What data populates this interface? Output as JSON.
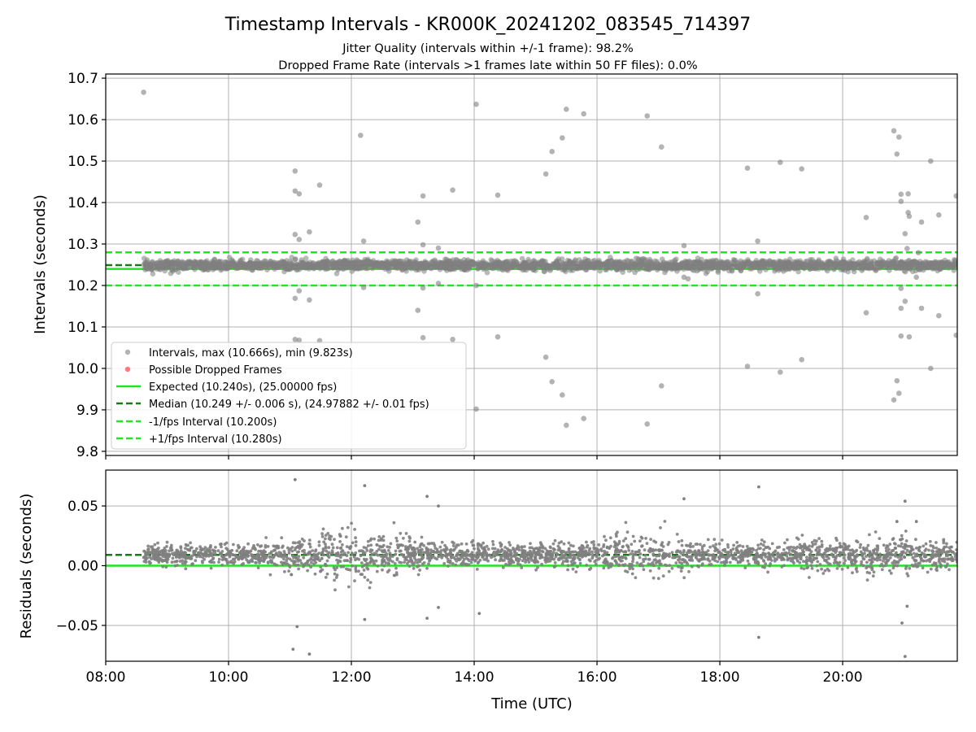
{
  "figure": {
    "title": "Timestamp Intervals - KR000K_20241202_083545_714397",
    "subtitle_1": "Jitter Quality (intervals within +/-1 frame): 98.2%",
    "subtitle_2": "Dropped Frame Rate (intervals >1 frames late within 50 FF files): 0.0%"
  },
  "colors": {
    "points": "#808080",
    "dropped": "#ff5a5a",
    "expected": "#1fe31f",
    "median": "#1a7a1a",
    "fps_band": "#22e622",
    "grid": "#b0b0b0"
  },
  "chart_data": [
    {
      "type": "scatter",
      "panel": "intervals",
      "xlabel": "",
      "ylabel": "Intervals (seconds)",
      "xlim": [
        "08:00",
        "21:52"
      ],
      "ylim": [
        9.79,
        10.71
      ],
      "yticks": [
        "9.8",
        "9.9",
        "10.0",
        "10.1",
        "10.2",
        "10.3",
        "10.4",
        "10.5",
        "10.6",
        "10.7"
      ],
      "grid": true,
      "legend_position": "lower-left",
      "legend": [
        "Intervals, max (10.666s), min (9.823s)",
        "Possible Dropped Frames",
        "Expected (10.240s), (25.00000 fps)",
        "Median (10.249 +/- 0.006 s), (24.97882 +/- 0.01 fps)",
        "-1/fps Interval (10.200s)",
        "+1/fps Interval (10.280s)"
      ],
      "reference_lines": {
        "expected": 10.24,
        "median": 10.249,
        "minus_1_fps": 10.2,
        "plus_1_fps": 10.28
      },
      "series": [
        {
          "name": "Intervals, max (10.666s), min (9.823s)",
          "band": {
            "x_range": [
              "08:37",
              "21:52"
            ],
            "center": 10.249,
            "std": 0.006
          },
          "outliers": [
            {
              "x": "08:37",
              "y": 10.666
            },
            {
              "x": "11:05",
              "y": 10.476
            },
            {
              "x": "11:05",
              "y": 10.428
            },
            {
              "x": "11:09",
              "y": 10.421
            },
            {
              "x": "11:05",
              "y": 10.323
            },
            {
              "x": "11:09",
              "y": 10.311
            },
            {
              "x": "11:05",
              "y": 10.169
            },
            {
              "x": "11:09",
              "y": 10.187
            },
            {
              "x": "11:05",
              "y": 10.07
            },
            {
              "x": "11:09",
              "y": 10.068
            },
            {
              "x": "11:19",
              "y": 10.329
            },
            {
              "x": "11:19",
              "y": 10.165
            },
            {
              "x": "11:29",
              "y": 10.442
            },
            {
              "x": "11:29",
              "y": 10.067
            },
            {
              "x": "12:09",
              "y": 10.562
            },
            {
              "x": "12:12",
              "y": 10.307
            },
            {
              "x": "12:12",
              "y": 10.195
            },
            {
              "x": "13:05",
              "y": 10.353
            },
            {
              "x": "13:05",
              "y": 10.14
            },
            {
              "x": "13:10",
              "y": 10.416
            },
            {
              "x": "13:10",
              "y": 10.298
            },
            {
              "x": "13:10",
              "y": 10.194
            },
            {
              "x": "13:10",
              "y": 10.074
            },
            {
              "x": "13:25",
              "y": 10.29
            },
            {
              "x": "13:25",
              "y": 10.205
            },
            {
              "x": "13:39",
              "y": 10.43
            },
            {
              "x": "13:39",
              "y": 10.07
            },
            {
              "x": "14:02",
              "y": 10.637
            },
            {
              "x": "14:02",
              "y": 10.2
            },
            {
              "x": "14:02",
              "y": 9.902
            },
            {
              "x": "14:23",
              "y": 10.418
            },
            {
              "x": "14:23",
              "y": 10.076
            },
            {
              "x": "15:10",
              "y": 10.469
            },
            {
              "x": "15:10",
              "y": 10.027
            },
            {
              "x": "15:16",
              "y": 10.523
            },
            {
              "x": "15:16",
              "y": 9.968
            },
            {
              "x": "15:26",
              "y": 10.556
            },
            {
              "x": "15:26",
              "y": 9.936
            },
            {
              "x": "15:30",
              "y": 10.625
            },
            {
              "x": "15:30",
              "y": 9.863
            },
            {
              "x": "15:47",
              "y": 10.614
            },
            {
              "x": "15:47",
              "y": 9.879
            },
            {
              "x": "16:49",
              "y": 10.609
            },
            {
              "x": "16:49",
              "y": 9.866
            },
            {
              "x": "17:03",
              "y": 10.534
            },
            {
              "x": "17:03",
              "y": 9.958
            },
            {
              "x": "17:25",
              "y": 10.296
            },
            {
              "x": "17:25",
              "y": 10.22
            },
            {
              "x": "17:29",
              "y": 10.216
            },
            {
              "x": "18:27",
              "y": 10.483
            },
            {
              "x": "18:27",
              "y": 10.005
            },
            {
              "x": "18:37",
              "y": 10.307
            },
            {
              "x": "18:37",
              "y": 10.18
            },
            {
              "x": "18:59",
              "y": 10.497
            },
            {
              "x": "18:59",
              "y": 9.991
            },
            {
              "x": "19:20",
              "y": 10.481
            },
            {
              "x": "19:20",
              "y": 10.021
            },
            {
              "x": "20:23",
              "y": 10.364
            },
            {
              "x": "20:23",
              "y": 10.134
            },
            {
              "x": "20:50",
              "y": 10.573
            },
            {
              "x": "20:50",
              "y": 9.924
            },
            {
              "x": "20:53",
              "y": 10.517
            },
            {
              "x": "20:53",
              "y": 9.97
            },
            {
              "x": "20:55",
              "y": 10.558
            },
            {
              "x": "20:55",
              "y": 9.94
            },
            {
              "x": "20:57",
              "y": 10.42
            },
            {
              "x": "20:57",
              "y": 10.403
            },
            {
              "x": "20:57",
              "y": 10.193
            },
            {
              "x": "20:57",
              "y": 10.145
            },
            {
              "x": "20:57",
              "y": 10.078
            },
            {
              "x": "21:01",
              "y": 10.325
            },
            {
              "x": "21:01",
              "y": 10.162
            },
            {
              "x": "21:03",
              "y": 10.289
            },
            {
              "x": "21:04",
              "y": 10.421
            },
            {
              "x": "21:04",
              "y": 10.376
            },
            {
              "x": "21:05",
              "y": 10.367
            },
            {
              "x": "21:05",
              "y": 10.076
            },
            {
              "x": "21:12",
              "y": 10.22
            },
            {
              "x": "21:14",
              "y": 10.279
            },
            {
              "x": "21:17",
              "y": 10.353
            },
            {
              "x": "21:17",
              "y": 10.145
            },
            {
              "x": "21:26",
              "y": 10.5
            },
            {
              "x": "21:26",
              "y": 10.0
            },
            {
              "x": "21:34",
              "y": 10.37
            },
            {
              "x": "21:34",
              "y": 10.127
            },
            {
              "x": "21:51",
              "y": 10.416
            },
            {
              "x": "21:51",
              "y": 10.08
            }
          ]
        },
        {
          "name": "Possible Dropped Frames",
          "points": []
        }
      ]
    },
    {
      "type": "scatter",
      "panel": "residuals",
      "xlabel": "Time (UTC)",
      "ylabel": "Residuals (seconds)",
      "xlim": [
        "08:00",
        "21:52"
      ],
      "ylim": [
        -0.08,
        0.08
      ],
      "xticks": [
        "08:00",
        "10:00",
        "12:00",
        "14:00",
        "16:00",
        "18:00",
        "20:00"
      ],
      "yticks": [
        "−0.05",
        "0.00",
        "0.05"
      ],
      "grid": true,
      "reference_lines": {
        "zero": 0.0,
        "median_offset": 0.009
      },
      "series": [
        {
          "name": "Residuals",
          "band": {
            "x_range": [
              "08:37",
              "21:52"
            ],
            "center": 0.009
          },
          "outliers": [
            {
              "x": "11:05",
              "y": 0.072
            },
            {
              "x": "11:03",
              "y": -0.07
            },
            {
              "x": "11:07",
              "y": -0.051
            },
            {
              "x": "11:19",
              "y": -0.074
            },
            {
              "x": "12:13",
              "y": 0.067
            },
            {
              "x": "12:13",
              "y": -0.045
            },
            {
              "x": "13:14",
              "y": 0.058
            },
            {
              "x": "13:14",
              "y": -0.044
            },
            {
              "x": "13:25",
              "y": 0.05
            },
            {
              "x": "13:25",
              "y": -0.035
            },
            {
              "x": "14:05",
              "y": -0.04
            },
            {
              "x": "17:25",
              "y": 0.056
            },
            {
              "x": "18:38",
              "y": 0.066
            },
            {
              "x": "18:38",
              "y": -0.06
            },
            {
              "x": "20:53",
              "y": 0.037
            },
            {
              "x": "21:01",
              "y": 0.054
            },
            {
              "x": "21:01",
              "y": -0.076
            },
            {
              "x": "21:03",
              "y": -0.034
            },
            {
              "x": "20:58",
              "y": -0.048
            },
            {
              "x": "21:12",
              "y": 0.037
            }
          ]
        }
      ]
    }
  ]
}
